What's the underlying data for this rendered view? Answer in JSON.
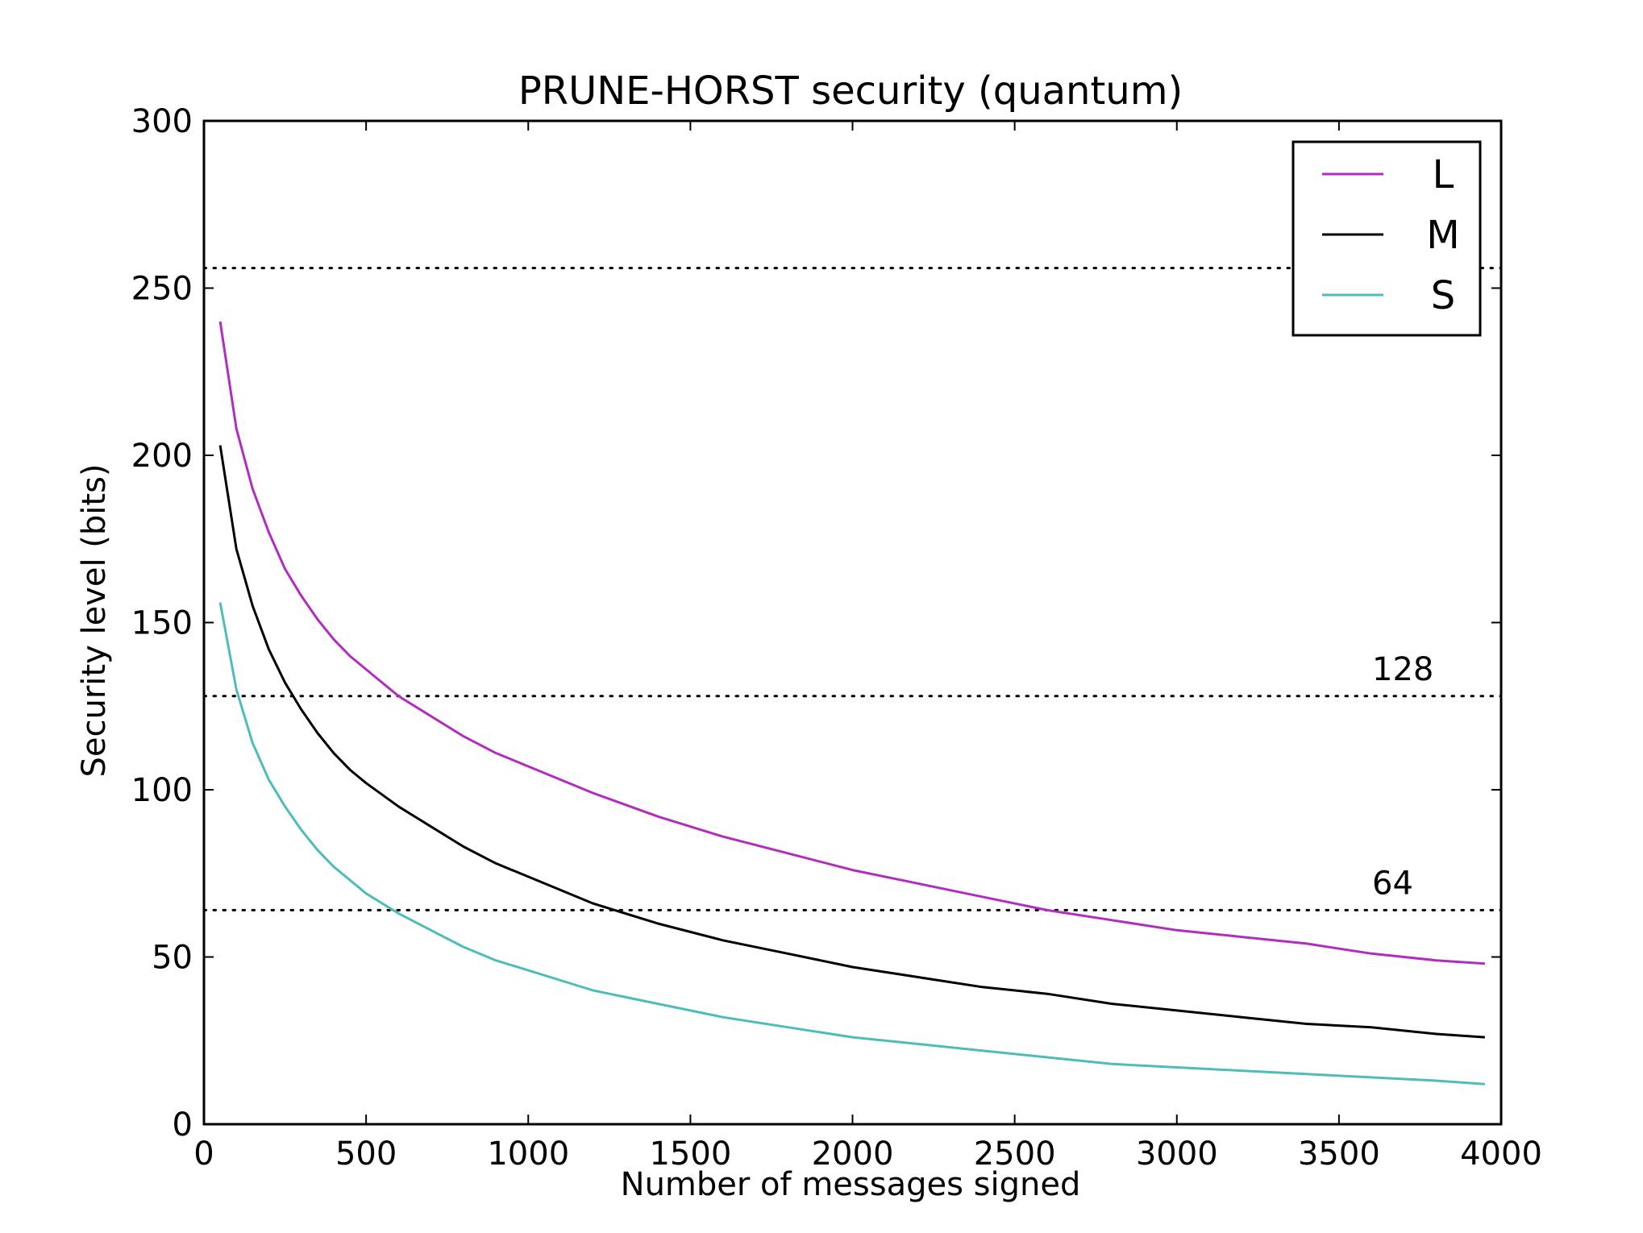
{
  "chart_data": {
    "type": "line",
    "title": "PRUNE-HORST security (quantum)",
    "xlabel": "Number of messages signed",
    "ylabel": "Security level (bits)",
    "xlim": [
      0,
      4000
    ],
    "ylim": [
      0,
      300
    ],
    "xticks": [
      0,
      500,
      1000,
      1500,
      2000,
      2500,
      3000,
      3500,
      4000
    ],
    "yticks": [
      0,
      50,
      100,
      150,
      200,
      250,
      300
    ],
    "grid": false,
    "legend": {
      "position": "top-right"
    },
    "reference_lines": [
      {
        "y": 256,
        "label": ""
      },
      {
        "y": 128,
        "label": "128"
      },
      {
        "y": 64,
        "label": "64"
      }
    ],
    "series": [
      {
        "name": "L",
        "color": "#b32cc0",
        "x": [
          50,
          100,
          150,
          200,
          250,
          300,
          350,
          400,
          450,
          500,
          600,
          700,
          800,
          900,
          1000,
          1200,
          1400,
          1600,
          1800,
          2000,
          2200,
          2400,
          2600,
          2800,
          3000,
          3200,
          3400,
          3600,
          3800,
          3950
        ],
        "y": [
          240,
          208,
          190,
          177,
          166,
          158,
          151,
          145,
          140,
          136,
          128,
          122,
          116,
          111,
          107,
          99,
          92,
          86,
          81,
          76,
          72,
          68,
          64,
          61,
          58,
          56,
          54,
          51,
          49,
          48
        ]
      },
      {
        "name": "M",
        "color": "#000000",
        "x": [
          50,
          100,
          150,
          200,
          250,
          300,
          350,
          400,
          450,
          500,
          600,
          700,
          800,
          900,
          1000,
          1200,
          1400,
          1600,
          1800,
          2000,
          2200,
          2400,
          2600,
          2800,
          3000,
          3200,
          3400,
          3600,
          3800,
          3950
        ],
        "y": [
          203,
          172,
          155,
          142,
          132,
          124,
          117,
          111,
          106,
          102,
          95,
          89,
          83,
          78,
          74,
          66,
          60,
          55,
          51,
          47,
          44,
          41,
          39,
          36,
          34,
          32,
          30,
          29,
          27,
          26
        ]
      },
      {
        "name": "S",
        "color": "#4dbdba",
        "x": [
          50,
          100,
          150,
          200,
          250,
          300,
          350,
          400,
          450,
          500,
          600,
          700,
          800,
          900,
          1000,
          1200,
          1400,
          1600,
          1800,
          2000,
          2200,
          2400,
          2600,
          2800,
          3000,
          3200,
          3400,
          3600,
          3800,
          3950
        ],
        "y": [
          156,
          130,
          114,
          103,
          95,
          88,
          82,
          77,
          73,
          69,
          63,
          58,
          53,
          49,
          46,
          40,
          36,
          32,
          29,
          26,
          24,
          22,
          20,
          18,
          17,
          16,
          15,
          14,
          13,
          12
        ]
      }
    ]
  }
}
